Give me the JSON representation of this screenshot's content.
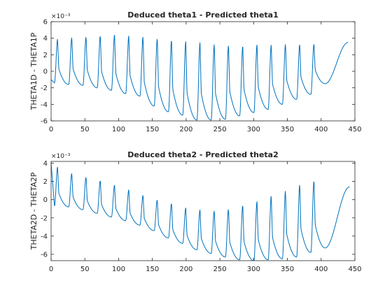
{
  "chart_data": [
    {
      "type": "line",
      "title": "Deduced theta1 - Predicted theta1",
      "ylabel": "THETA1D - THETA1P",
      "xlabel": "",
      "xlim": [
        0,
        450
      ],
      "ylim": [
        -6,
        6
      ],
      "exponent_label": "×10⁻³",
      "xticks": [
        0,
        50,
        100,
        150,
        200,
        250,
        300,
        350,
        400,
        450
      ],
      "yticks": [
        -6,
        -4,
        -2,
        0,
        2,
        4,
        6
      ],
      "line_color": "#0072BD",
      "grid": false,
      "x_end": 440,
      "period": 21.1,
      "start_value": -1.0,
      "end_value": 3.5,
      "cycles": [
        {
          "min": -1.4,
          "max": 3.9
        },
        {
          "min": -1.6,
          "max": 4.1
        },
        {
          "min": -1.7,
          "max": 4.2
        },
        {
          "min": -2.0,
          "max": 4.3
        },
        {
          "min": -2.3,
          "max": 4.4
        },
        {
          "min": -2.7,
          "max": 4.3
        },
        {
          "min": -3.0,
          "max": 4.2
        },
        {
          "min": -4.2,
          "max": 4.0
        },
        {
          "min": -4.9,
          "max": 3.8
        },
        {
          "min": -5.3,
          "max": 3.6
        },
        {
          "min": -5.9,
          "max": 3.5
        },
        {
          "min": -5.9,
          "max": 3.3
        },
        {
          "min": -5.8,
          "max": 3.2
        },
        {
          "min": -5.4,
          "max": 3.1
        },
        {
          "min": -5.0,
          "max": 3.2
        },
        {
          "min": -4.6,
          "max": 3.2
        },
        {
          "min": -4.0,
          "max": 3.3
        },
        {
          "min": -3.4,
          "max": 3.3
        },
        {
          "min": -2.8,
          "max": 3.3
        },
        {
          "min": -1.5,
          "max": 3.5
        }
      ]
    },
    {
      "type": "line",
      "title": "Deduced theta2 - Predicted theta2",
      "ylabel": "THETA2D - THETA2P",
      "xlabel": "",
      "xlim": [
        0,
        450
      ],
      "ylim": [
        -6.7,
        4.2
      ],
      "exponent_label": "×10⁻³",
      "xticks": [
        0,
        50,
        100,
        150,
        200,
        250,
        300,
        350,
        400,
        450
      ],
      "yticks": [
        -6,
        -4,
        -2,
        0,
        2,
        4
      ],
      "line_color": "#0072BD",
      "grid": false,
      "x_end": 442,
      "period": 21.1,
      "start_value": 4.0,
      "end_value": 1.4,
      "cycles": [
        {
          "min": -0.7,
          "max": 3.6
        },
        {
          "min": -0.8,
          "max": 2.9
        },
        {
          "min": -1.1,
          "max": 2.5
        },
        {
          "min": -1.5,
          "max": 2.1
        },
        {
          "min": -1.9,
          "max": 1.6
        },
        {
          "min": -2.3,
          "max": 1.1
        },
        {
          "min": -2.8,
          "max": 0.5
        },
        {
          "min": -3.4,
          "max": 0.0
        },
        {
          "min": -4.2,
          "max": -0.4
        },
        {
          "min": -4.8,
          "max": -0.9
        },
        {
          "min": -5.5,
          "max": -1.1
        },
        {
          "min": -5.9,
          "max": -1.2
        },
        {
          "min": -6.3,
          "max": -1.0
        },
        {
          "min": -6.6,
          "max": -0.6
        },
        {
          "min": -6.7,
          "max": -0.2
        },
        {
          "min": -6.6,
          "max": 0.4
        },
        {
          "min": -6.5,
          "max": 1.0
        },
        {
          "min": -6.3,
          "max": 1.7
        },
        {
          "min": -5.8,
          "max": 2.1
        },
        {
          "min": -5.3,
          "max": 2.2
        }
      ]
    }
  ]
}
